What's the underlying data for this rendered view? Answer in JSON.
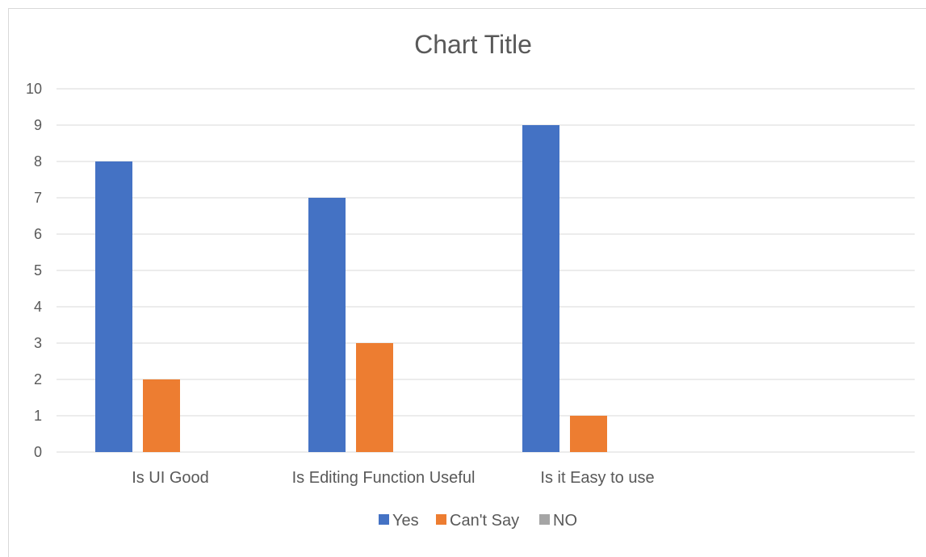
{
  "chart_data": {
    "type": "bar",
    "title": "Chart Title",
    "xlabel": "",
    "ylabel": "",
    "categories": [
      "Is UI Good",
      "Is Editing Function Useful",
      "Is it Easy to use"
    ],
    "series": [
      {
        "name": "Yes",
        "values": [
          8,
          7,
          9
        ],
        "color": "#4472C4"
      },
      {
        "name": "Can't Say",
        "values": [
          2,
          3,
          1
        ],
        "color": "#ED7D31"
      },
      {
        "name": "NO",
        "values": [
          0,
          0,
          0
        ],
        "color": "#A5A5A5"
      }
    ],
    "ylim": [
      0,
      10
    ],
    "yticks": [
      0,
      1,
      2,
      3,
      4,
      5,
      6,
      7,
      8,
      9,
      10
    ],
    "grid": true,
    "legend_position": "bottom"
  }
}
